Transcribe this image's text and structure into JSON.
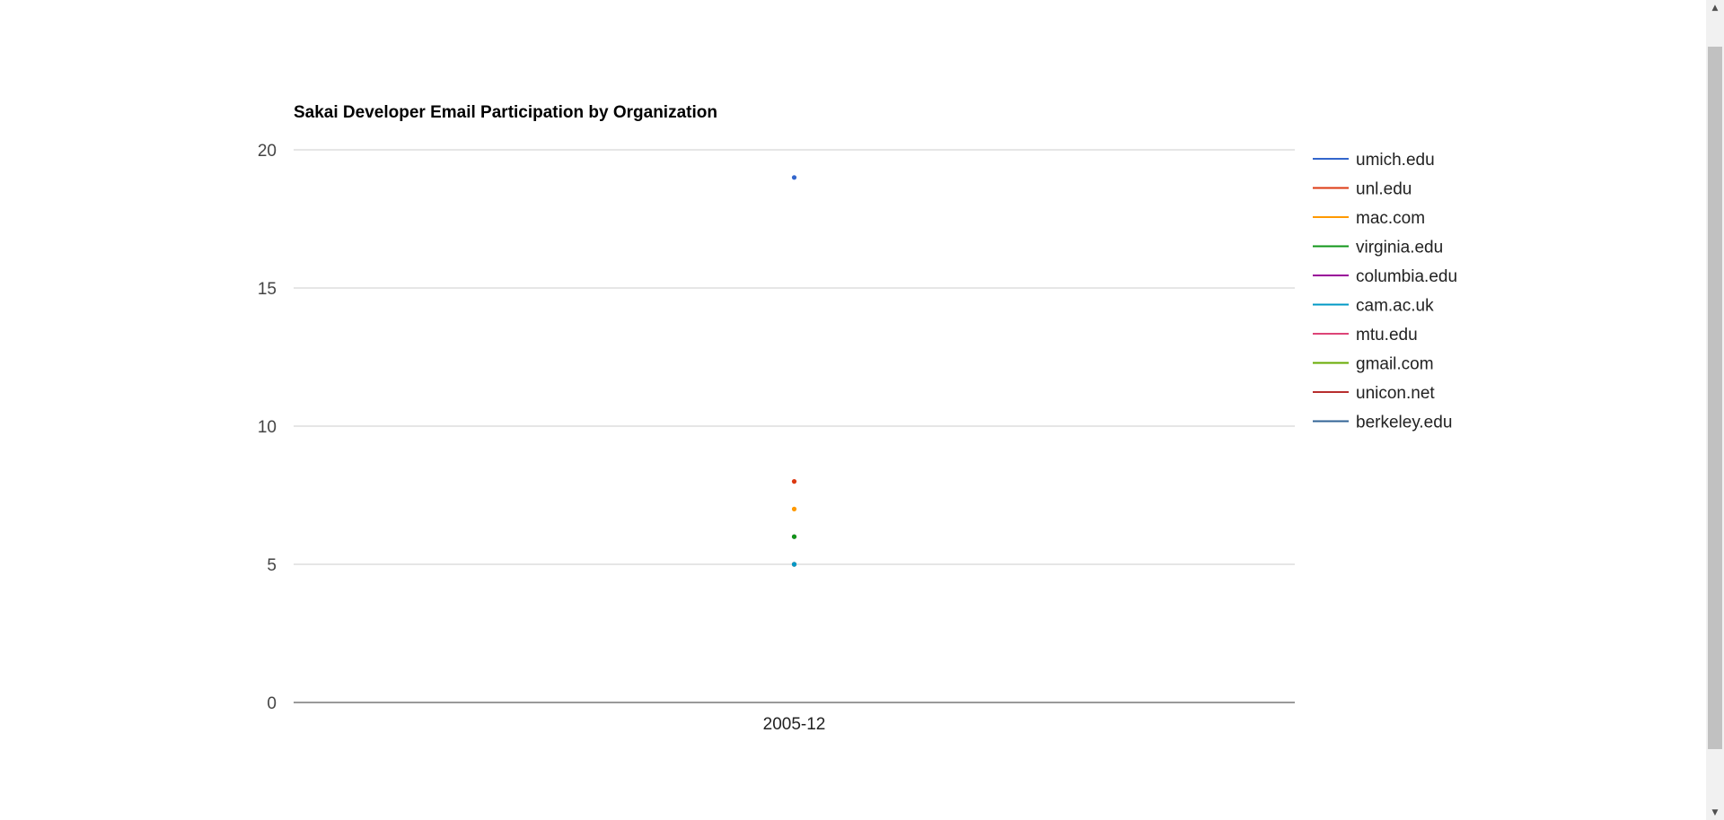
{
  "chart_data": {
    "type": "line",
    "title": "Sakai Developer Email Participation by Organization",
    "xlabel": "",
    "ylabel": "",
    "categories": [
      "2005-12"
    ],
    "ylim": [
      0,
      20
    ],
    "yticks": [
      0,
      5,
      10,
      15,
      20
    ],
    "grid": true,
    "legend_position": "right",
    "series": [
      {
        "name": "umich.edu",
        "color": "#3366cc",
        "values": [
          19
        ]
      },
      {
        "name": "unl.edu",
        "color": "#dc3912",
        "values": [
          8
        ]
      },
      {
        "name": "mac.com",
        "color": "#ff9900",
        "values": [
          7
        ]
      },
      {
        "name": "virginia.edu",
        "color": "#109618",
        "values": [
          6
        ]
      },
      {
        "name": "columbia.edu",
        "color": "#990099",
        "values": [
          6
        ]
      },
      {
        "name": "cam.ac.uk",
        "color": "#0099c6",
        "values": [
          5
        ]
      },
      {
        "name": "mtu.edu",
        "color": "#dd4477",
        "values": [
          5
        ]
      },
      {
        "name": "gmail.com",
        "color": "#66aa00",
        "values": [
          5
        ]
      },
      {
        "name": "unicon.net",
        "color": "#b82e2e",
        "values": [
          5
        ]
      },
      {
        "name": "berkeley.edu",
        "color": "#316395",
        "values": [
          5
        ]
      }
    ]
  },
  "scrollbar": {
    "up_icon": "triangle-up",
    "down_icon": "triangle-down"
  }
}
